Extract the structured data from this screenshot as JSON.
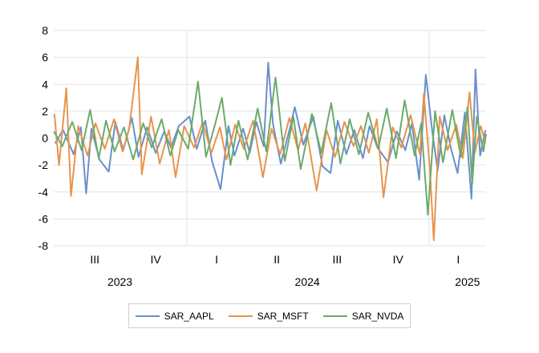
{
  "chart_data": {
    "type": "line",
    "title": "",
    "xlabel": "",
    "ylabel": "",
    "x_range": [
      "2023-06-14",
      "2025-03-28"
    ],
    "ylim": [
      -8,
      8
    ],
    "yticks": [
      8,
      6,
      4,
      2,
      0,
      -2,
      -4,
      -6,
      -8
    ],
    "ytick_labels": [
      "8",
      "6",
      "4",
      "2",
      "0",
      "-2",
      "-4",
      "-6",
      "-8"
    ],
    "quarter_labels": [
      {
        "label": "III",
        "date": "2023-08-15"
      },
      {
        "label": "IV",
        "date": "2023-11-15"
      },
      {
        "label": "I",
        "date": "2024-02-15"
      },
      {
        "label": "II",
        "date": "2024-05-16"
      },
      {
        "label": "III",
        "date": "2024-08-15"
      },
      {
        "label": "IV",
        "date": "2024-11-15"
      },
      {
        "label": "I",
        "date": "2025-02-14"
      }
    ],
    "year_labels": [
      {
        "label": "2023",
        "date": "2023-09-22"
      },
      {
        "label": "2024",
        "date": "2024-07-01"
      },
      {
        "label": "2025",
        "date": "2025-02-28"
      }
    ],
    "year_boundaries": [
      "2024-01-01",
      "2025-01-01"
    ],
    "grid": "horizontal",
    "legend_position": "bottom",
    "series": [
      {
        "name": "SAR_AAPL",
        "color": "#6a8fcb",
        "points": [
          [
            "2023-06-16",
            -0.4
          ],
          [
            "2023-06-28",
            0.6
          ],
          [
            "2023-07-14",
            -1.2
          ],
          [
            "2023-07-25",
            0.8
          ],
          [
            "2023-08-02",
            -4.1
          ],
          [
            "2023-08-10",
            0.7
          ],
          [
            "2023-08-22",
            -1.6
          ],
          [
            "2023-09-05",
            -2.5
          ],
          [
            "2023-09-15",
            1.2
          ],
          [
            "2023-09-27",
            -0.9
          ],
          [
            "2023-10-10",
            1.5
          ],
          [
            "2023-10-20",
            -1.4
          ],
          [
            "2023-11-02",
            0.8
          ],
          [
            "2023-11-15",
            -1.1
          ],
          [
            "2023-11-28",
            0.5
          ],
          [
            "2023-12-08",
            -0.7
          ],
          [
            "2023-12-20",
            0.9
          ],
          [
            "2024-01-05",
            1.6
          ],
          [
            "2024-01-16",
            -0.8
          ],
          [
            "2024-01-29",
            1.3
          ],
          [
            "2024-02-08",
            -1.7
          ],
          [
            "2024-02-21",
            -3.8
          ],
          [
            "2024-03-04",
            0.9
          ],
          [
            "2024-03-13",
            -1.3
          ],
          [
            "2024-03-26",
            0.7
          ],
          [
            "2024-04-05",
            -1.1
          ],
          [
            "2024-04-15",
            1.2
          ],
          [
            "2024-04-26",
            -0.6
          ],
          [
            "2024-05-03",
            5.6
          ],
          [
            "2024-05-10",
            1.1
          ],
          [
            "2024-05-22",
            -1.9
          ],
          [
            "2024-06-05",
            0.8
          ],
          [
            "2024-06-12",
            2.3
          ],
          [
            "2024-06-25",
            -0.5
          ],
          [
            "2024-07-10",
            1.6
          ],
          [
            "2024-07-24",
            -2.1
          ],
          [
            "2024-08-05",
            -2.6
          ],
          [
            "2024-08-16",
            1.3
          ],
          [
            "2024-08-29",
            -1.2
          ],
          [
            "2024-09-10",
            0.6
          ],
          [
            "2024-09-23",
            -1.5
          ],
          [
            "2024-10-03",
            0.9
          ],
          [
            "2024-10-15",
            -0.7
          ],
          [
            "2024-10-31",
            -1.8
          ],
          [
            "2024-11-13",
            0.5
          ],
          [
            "2024-11-26",
            -0.9
          ],
          [
            "2024-12-06",
            1.1
          ],
          [
            "2024-12-17",
            -3.1
          ],
          [
            "2024-12-27",
            4.7
          ],
          [
            "2025-01-06",
            0.4
          ],
          [
            "2025-01-14",
            -2.4
          ],
          [
            "2025-01-24",
            1.7
          ],
          [
            "2025-02-03",
            -0.8
          ],
          [
            "2025-02-13",
            -2.6
          ],
          [
            "2025-02-24",
            1.9
          ],
          [
            "2025-03-06",
            -4.5
          ],
          [
            "2025-03-12",
            5.1
          ],
          [
            "2025-03-19",
            -1.3
          ],
          [
            "2025-03-27",
            0.6
          ]
        ]
      },
      {
        "name": "SAR_MSFT",
        "color": "#e8944c",
        "points": [
          [
            "2023-06-15",
            1.8
          ],
          [
            "2023-06-22",
            -2.0
          ],
          [
            "2023-07-03",
            3.7
          ],
          [
            "2023-07-10",
            -4.3
          ],
          [
            "2023-07-21",
            0.9
          ],
          [
            "2023-08-04",
            -1.3
          ],
          [
            "2023-08-16",
            1.1
          ],
          [
            "2023-08-30",
            -0.8
          ],
          [
            "2023-09-13",
            1.4
          ],
          [
            "2023-09-26",
            -1.0
          ],
          [
            "2023-10-06",
            0.7
          ],
          [
            "2023-10-19",
            6.0
          ],
          [
            "2023-10-25",
            -2.7
          ],
          [
            "2023-11-08",
            1.6
          ],
          [
            "2023-11-21",
            -1.9
          ],
          [
            "2023-12-05",
            0.6
          ],
          [
            "2023-12-15",
            -2.9
          ],
          [
            "2023-12-28",
            0.9
          ],
          [
            "2024-01-12",
            -0.7
          ],
          [
            "2024-01-25",
            1.2
          ],
          [
            "2024-02-07",
            -1.1
          ],
          [
            "2024-02-20",
            0.8
          ],
          [
            "2024-03-01",
            -1.6
          ],
          [
            "2024-03-14",
            1.0
          ],
          [
            "2024-03-27",
            -0.8
          ],
          [
            "2024-04-10",
            1.3
          ],
          [
            "2024-04-25",
            -2.9
          ],
          [
            "2024-05-08",
            0.7
          ],
          [
            "2024-05-21",
            -1.2
          ],
          [
            "2024-06-04",
            1.5
          ],
          [
            "2024-06-17",
            -0.9
          ],
          [
            "2024-06-28",
            1.1
          ],
          [
            "2024-07-15",
            -3.9
          ],
          [
            "2024-07-30",
            0.6
          ],
          [
            "2024-08-12",
            -1.4
          ],
          [
            "2024-08-26",
            1.2
          ],
          [
            "2024-09-09",
            -0.6
          ],
          [
            "2024-09-20",
            0.9
          ],
          [
            "2024-10-02",
            -1.1
          ],
          [
            "2024-10-14",
            1.4
          ],
          [
            "2024-10-24",
            -4.4
          ],
          [
            "2024-11-07",
            0.8
          ],
          [
            "2024-11-20",
            -0.7
          ],
          [
            "2024-12-04",
            1.7
          ],
          [
            "2024-12-18",
            -1.2
          ],
          [
            "2024-12-24",
            3.3
          ],
          [
            "2025-01-02",
            -2.2
          ],
          [
            "2025-01-08",
            -7.6
          ],
          [
            "2025-01-17",
            1.6
          ],
          [
            "2025-01-29",
            -0.9
          ],
          [
            "2025-02-11",
            1.0
          ],
          [
            "2025-02-21",
            -1.5
          ],
          [
            "2025-03-03",
            3.4
          ],
          [
            "2025-03-11",
            -1.1
          ],
          [
            "2025-03-20",
            0.9
          ],
          [
            "2025-03-27",
            -0.4
          ]
        ]
      },
      {
        "name": "SAR_NVDA",
        "color": "#6bab6b",
        "points": [
          [
            "2023-06-14",
            0.5
          ],
          [
            "2023-06-27",
            -0.6
          ],
          [
            "2023-07-12",
            1.2
          ],
          [
            "2023-07-26",
            -0.9
          ],
          [
            "2023-08-08",
            2.1
          ],
          [
            "2023-08-21",
            -1.5
          ],
          [
            "2023-09-01",
            1.3
          ],
          [
            "2023-09-14",
            -1.0
          ],
          [
            "2023-09-28",
            0.8
          ],
          [
            "2023-10-12",
            -1.6
          ],
          [
            "2023-10-27",
            1.1
          ],
          [
            "2023-11-09",
            -0.7
          ],
          [
            "2023-11-24",
            1.4
          ],
          [
            "2023-12-07",
            -1.3
          ],
          [
            "2023-12-19",
            0.6
          ],
          [
            "2024-01-03",
            -0.8
          ],
          [
            "2024-01-18",
            4.2
          ],
          [
            "2024-01-30",
            -1.4
          ],
          [
            "2024-02-12",
            0.9
          ],
          [
            "2024-02-23",
            3.0
          ],
          [
            "2024-03-07",
            -2.0
          ],
          [
            "2024-03-19",
            1.3
          ],
          [
            "2024-04-02",
            -1.6
          ],
          [
            "2024-04-17",
            2.2
          ],
          [
            "2024-04-30",
            -1.0
          ],
          [
            "2024-05-14",
            4.5
          ],
          [
            "2024-05-28",
            -1.7
          ],
          [
            "2024-06-10",
            1.6
          ],
          [
            "2024-06-21",
            -2.3
          ],
          [
            "2024-07-08",
            1.8
          ],
          [
            "2024-07-22",
            -1.1
          ],
          [
            "2024-08-06",
            2.6
          ],
          [
            "2024-08-20",
            -1.9
          ],
          [
            "2024-09-03",
            1.4
          ],
          [
            "2024-09-17",
            -1.2
          ],
          [
            "2024-10-01",
            1.9
          ],
          [
            "2024-10-16",
            -0.8
          ],
          [
            "2024-10-29",
            2.2
          ],
          [
            "2024-11-12",
            -1.5
          ],
          [
            "2024-11-25",
            2.8
          ],
          [
            "2024-12-10",
            -1.3
          ],
          [
            "2024-12-20",
            1.1
          ],
          [
            "2024-12-30",
            -5.7
          ],
          [
            "2025-01-10",
            2.0
          ],
          [
            "2025-01-22",
            -1.8
          ],
          [
            "2025-02-05",
            2.1
          ],
          [
            "2025-02-18",
            -1.4
          ],
          [
            "2025-02-28",
            2.3
          ],
          [
            "2025-03-07",
            -3.4
          ],
          [
            "2025-03-14",
            1.6
          ],
          [
            "2025-03-24",
            -1.0
          ],
          [
            "2025-03-28",
            0.3
          ]
        ]
      }
    ]
  }
}
